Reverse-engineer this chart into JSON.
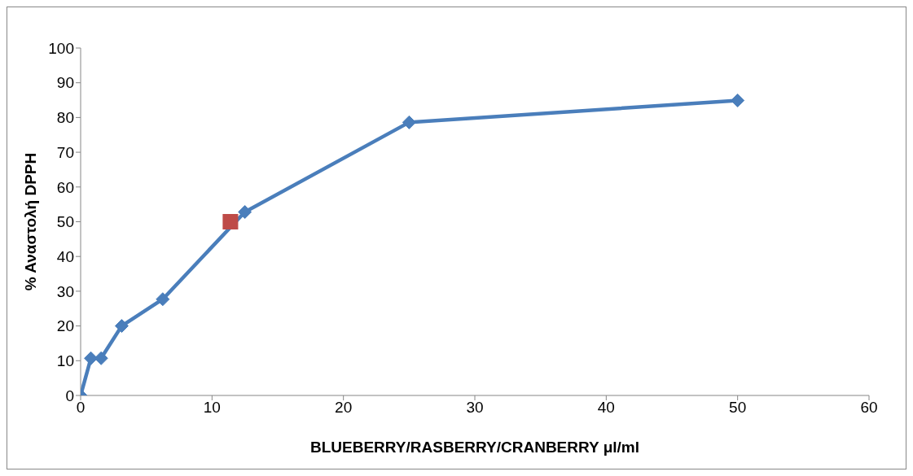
{
  "chart_data": {
    "type": "line",
    "xlabel": "BLUEBERRY/RASBERRY/CRANBERRY μl/ml",
    "ylabel": "% Αναστολή DPPH",
    "xlim": [
      0,
      60
    ],
    "xticks": [
      0,
      10,
      20,
      30,
      40,
      50,
      60
    ],
    "ylim": [
      0,
      100
    ],
    "yticks": [
      0,
      10,
      20,
      30,
      40,
      50,
      60,
      70,
      80,
      90,
      100
    ],
    "grid": false,
    "line_style": "solid",
    "series": [
      {
        "marker": "diamond",
        "color": "#4a7ebb",
        "x": [
          0,
          0.78,
          1.56,
          3.125,
          6.25,
          12.5,
          25,
          50
        ],
        "values": [
          0,
          10.7,
          10.7,
          20,
          27.7,
          52.8,
          78.6,
          84.9
        ]
      },
      {
        "type": "scatter",
        "marker": "square",
        "color": "#be4b48",
        "x": [
          11.4
        ],
        "values": [
          50
        ]
      }
    ]
  }
}
